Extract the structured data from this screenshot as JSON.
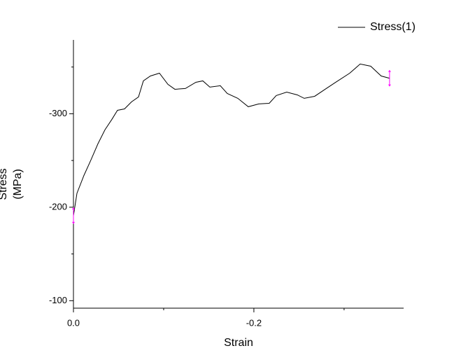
{
  "chart_data": {
    "type": "line",
    "xlabel": "Strain",
    "ylabel": [
      "Stress",
      "(MPa)"
    ],
    "x": [
      0,
      -0.0039,
      -0.0116,
      -0.0194,
      -0.0271,
      -0.0349,
      -0.0426,
      -0.0488,
      -0.0566,
      -0.0643,
      -0.0721,
      -0.0775,
      -0.0853,
      -0.0953,
      -0.1047,
      -0.1124,
      -0.124,
      -0.1357,
      -0.1434,
      -0.1512,
      -0.1628,
      -0.1705,
      -0.1822,
      -0.1938,
      -0.2054,
      -0.217,
      -0.2248,
      -0.2364,
      -0.2481,
      -0.2558,
      -0.2674,
      -0.279,
      -0.2907,
      -0.3062,
      -0.3178,
      -0.3295,
      -0.3411,
      -0.3504
    ],
    "series": [
      {
        "name": "Stress(1)",
        "color": "#000000",
        "values": [
          -191,
          -215,
          -234,
          -250.6,
          -267.8,
          -282.8,
          -294,
          -303.7,
          -305.2,
          -312.7,
          -318,
          -335.2,
          -340.4,
          -343.4,
          -331.5,
          -326.2,
          -327,
          -333.7,
          -335.2,
          -328.5,
          -330,
          -321.7,
          -316.5,
          -307.5,
          -310.5,
          -311.2,
          -319.5,
          -323.2,
          -320.2,
          -316.5,
          -318.7,
          -326.2,
          -333.7,
          -343.4,
          -353.2,
          -350.9,
          -340.4,
          -338
        ],
        "errors": [
          6.7,
          null,
          null,
          null,
          null,
          null,
          null,
          null,
          null,
          null,
          null,
          null,
          null,
          null,
          null,
          null,
          null,
          null,
          null,
          null,
          null,
          null,
          null,
          null,
          null,
          null,
          null,
          null,
          null,
          null,
          null,
          null,
          null,
          null,
          null,
          null,
          null,
          6.7
        ],
        "error_color": "#ff00ff"
      }
    ],
    "xlim": [
      0,
      -0.366
    ],
    "ylim": [
      -92,
      -379
    ],
    "xticks": [
      {
        "value": 0,
        "label": "0.0"
      },
      -0.2
    ],
    "xminor": [
      -0.1,
      -0.3
    ],
    "yticks": [
      -100,
      -200,
      -300
    ],
    "yminor": [
      -150,
      -250,
      -350
    ],
    "legend": "top-right"
  }
}
